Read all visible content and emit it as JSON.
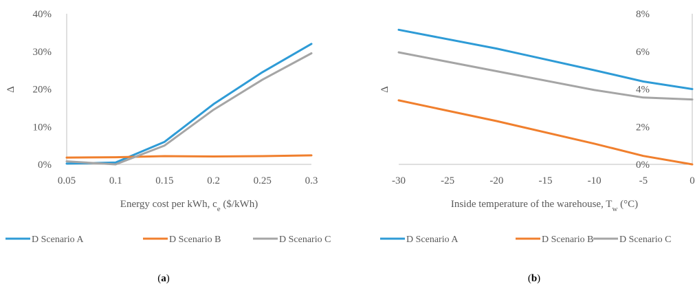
{
  "chart_data": [
    {
      "type": "line",
      "panel_label": "(a)",
      "panel_label_bold": "a",
      "xlabel": "Energy cost per kWh, c",
      "xlabel_sub": "e",
      "xlabel_after": " ($/kWh)",
      "ylabel": "Δ",
      "x": [
        0.05,
        0.1,
        0.15,
        0.2,
        0.25,
        0.3
      ],
      "x_tick_labels": [
        "0.05",
        "0.1",
        "0.15",
        "0.2",
        "0.25",
        "0.3"
      ],
      "y_tick_labels": [
        "0%",
        "10%",
        "20%",
        "30%",
        "40%"
      ],
      "ylim": [
        0,
        40
      ],
      "y_unit": "%",
      "grid": false,
      "legend_position": "bottom",
      "series": [
        {
          "name": "D Scenario A",
          "color": "#2E9BD6",
          "points": [
            [
              0.05,
              0.2
            ],
            [
              0.1,
              0.5
            ],
            [
              0.15,
              6.0
            ],
            [
              0.2,
              16.0
            ],
            [
              0.25,
              24.5
            ],
            [
              0.3,
              32.0
            ]
          ]
        },
        {
          "name": "D Scenario B",
          "color": "#F07F2D",
          "points": [
            [
              0.05,
              1.8
            ],
            [
              0.1,
              1.9
            ],
            [
              0.15,
              2.2
            ],
            [
              0.2,
              2.1
            ],
            [
              0.25,
              2.2
            ],
            [
              0.3,
              2.4
            ]
          ]
        },
        {
          "name": "D Scenario C",
          "color": "#A5A5A5",
          "points": [
            [
              0.05,
              0.8
            ],
            [
              0.1,
              0.0
            ],
            [
              0.15,
              5.0
            ],
            [
              0.2,
              14.5
            ],
            [
              0.25,
              22.5
            ],
            [
              0.3,
              29.5
            ]
          ]
        }
      ]
    },
    {
      "type": "line",
      "panel_label": "(b)",
      "panel_label_bold": "b",
      "xlabel": "Inside temperature of the warehouse, T",
      "xlabel_sub": "w",
      "xlabel_after": " (°C)",
      "ylabel": "Δ",
      "x": [
        -30,
        -25,
        -20,
        -15,
        -10,
        -5,
        0
      ],
      "x_tick_labels": [
        "-30",
        "-25",
        "-20",
        "-15",
        "-10",
        "-5",
        "0"
      ],
      "y_tick_labels": [
        "0%",
        "2%",
        "4%",
        "6%",
        "8%"
      ],
      "ylim": [
        0,
        8
      ],
      "y_unit": "%",
      "y_axis_side": "right",
      "grid": false,
      "legend_position": "bottom",
      "series": [
        {
          "name": "D Scenario A",
          "color": "#2E9BD6",
          "points": [
            [
              -30,
              7.15
            ],
            [
              -20,
              6.15
            ],
            [
              -10,
              5.0
            ],
            [
              -5,
              4.4
            ],
            [
              0,
              4.0
            ]
          ]
        },
        {
          "name": "D Scenario B",
          "color": "#F07F2D",
          "points": [
            [
              -30,
              3.4
            ],
            [
              -20,
              2.3
            ],
            [
              -10,
              1.1
            ],
            [
              -5,
              0.45
            ],
            [
              0,
              0.0
            ]
          ]
        },
        {
          "name": "D Scenario C",
          "color": "#A5A5A5",
          "points": [
            [
              -30,
              5.95
            ],
            [
              -20,
              4.95
            ],
            [
              -10,
              3.95
            ],
            [
              -5,
              3.55
            ],
            [
              0,
              3.45
            ]
          ]
        }
      ]
    }
  ]
}
